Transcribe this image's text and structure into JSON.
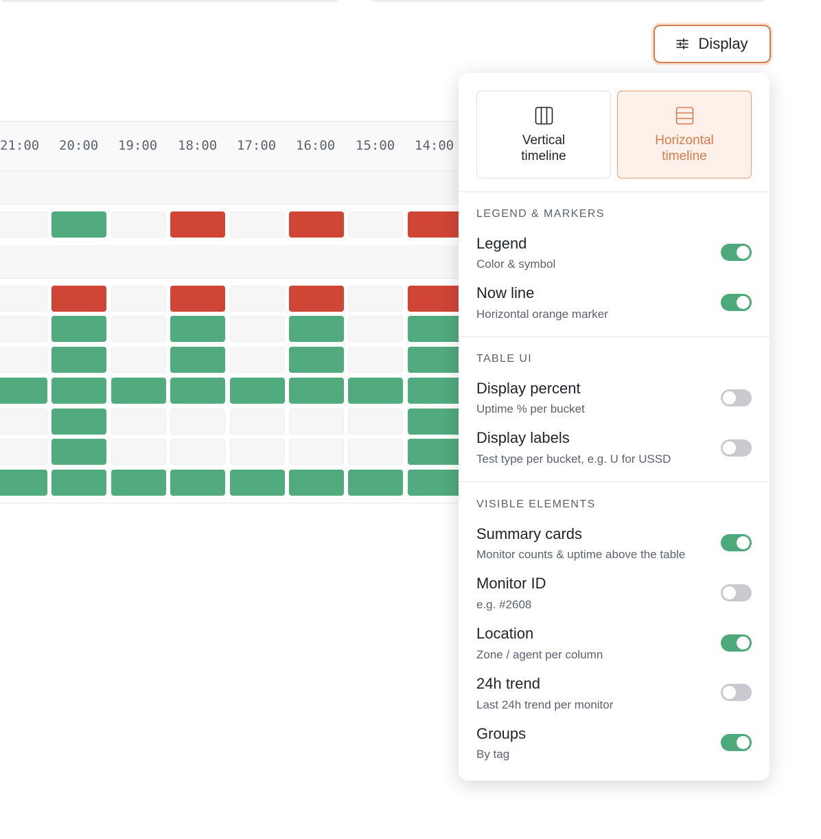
{
  "display_button": {
    "label": "Display",
    "icon": "sliders-icon"
  },
  "timeline": {
    "hours": [
      "21:00",
      "20:00",
      "19:00",
      "18:00",
      "17:00",
      "16:00",
      "15:00",
      "14:00"
    ],
    "status_colors": {
      "up": "#52aa7f",
      "down": "#cf4536",
      "empty": "#f6f6f6"
    },
    "rows": [
      [
        "e",
        "up",
        "e",
        "down",
        "e",
        "down",
        "e",
        "down"
      ],
      [
        "e",
        "down",
        "e",
        "down",
        "e",
        "down",
        "e",
        "down"
      ],
      [
        "e",
        "up",
        "e",
        "up",
        "e",
        "up",
        "e",
        "up"
      ],
      [
        "e",
        "up",
        "e",
        "up",
        "e",
        "up",
        "e",
        "up"
      ],
      [
        "up",
        "up",
        "up",
        "up",
        "up",
        "up",
        "up",
        "up"
      ],
      [
        "e",
        "up",
        "e",
        "e",
        "e",
        "e",
        "e",
        "up"
      ],
      [
        "e",
        "up",
        "e",
        "e",
        "e",
        "e",
        "e",
        "up"
      ],
      [
        "up",
        "up",
        "up",
        "up",
        "up",
        "up",
        "up",
        "up"
      ]
    ]
  },
  "popover": {
    "modes": [
      {
        "line1": "Vertical",
        "line2": "timeline",
        "icon": "columns-icon",
        "selected": false
      },
      {
        "line1": "Horizontal",
        "line2": "timeline",
        "icon": "rows-icon",
        "selected": true
      }
    ],
    "sections": [
      {
        "title": "LEGEND & MARKERS",
        "items": [
          {
            "title": "Legend",
            "subtitle": "Color & symbol",
            "on": true
          },
          {
            "title": "Now line",
            "subtitle": "Horizontal orange marker",
            "on": true
          }
        ]
      },
      {
        "title": "TABLE UI",
        "items": [
          {
            "title": "Display percent",
            "subtitle": "Uptime % per bucket",
            "on": false
          },
          {
            "title": "Display labels",
            "subtitle": "Test type per bucket, e.g. U for USSD",
            "on": false
          }
        ]
      },
      {
        "title": "VISIBLE ELEMENTS",
        "items": [
          {
            "title": "Summary cards",
            "subtitle": "Monitor counts & uptime above the table",
            "on": true
          },
          {
            "title": "Monitor ID",
            "subtitle": "e.g. #2608",
            "on": false
          },
          {
            "title": "Location",
            "subtitle": "Zone / agent per column",
            "on": true
          },
          {
            "title": "24h trend",
            "subtitle": "Last 24h trend per monitor",
            "on": false
          },
          {
            "title": "Groups",
            "subtitle": "By tag",
            "on": true
          }
        ]
      }
    ]
  }
}
